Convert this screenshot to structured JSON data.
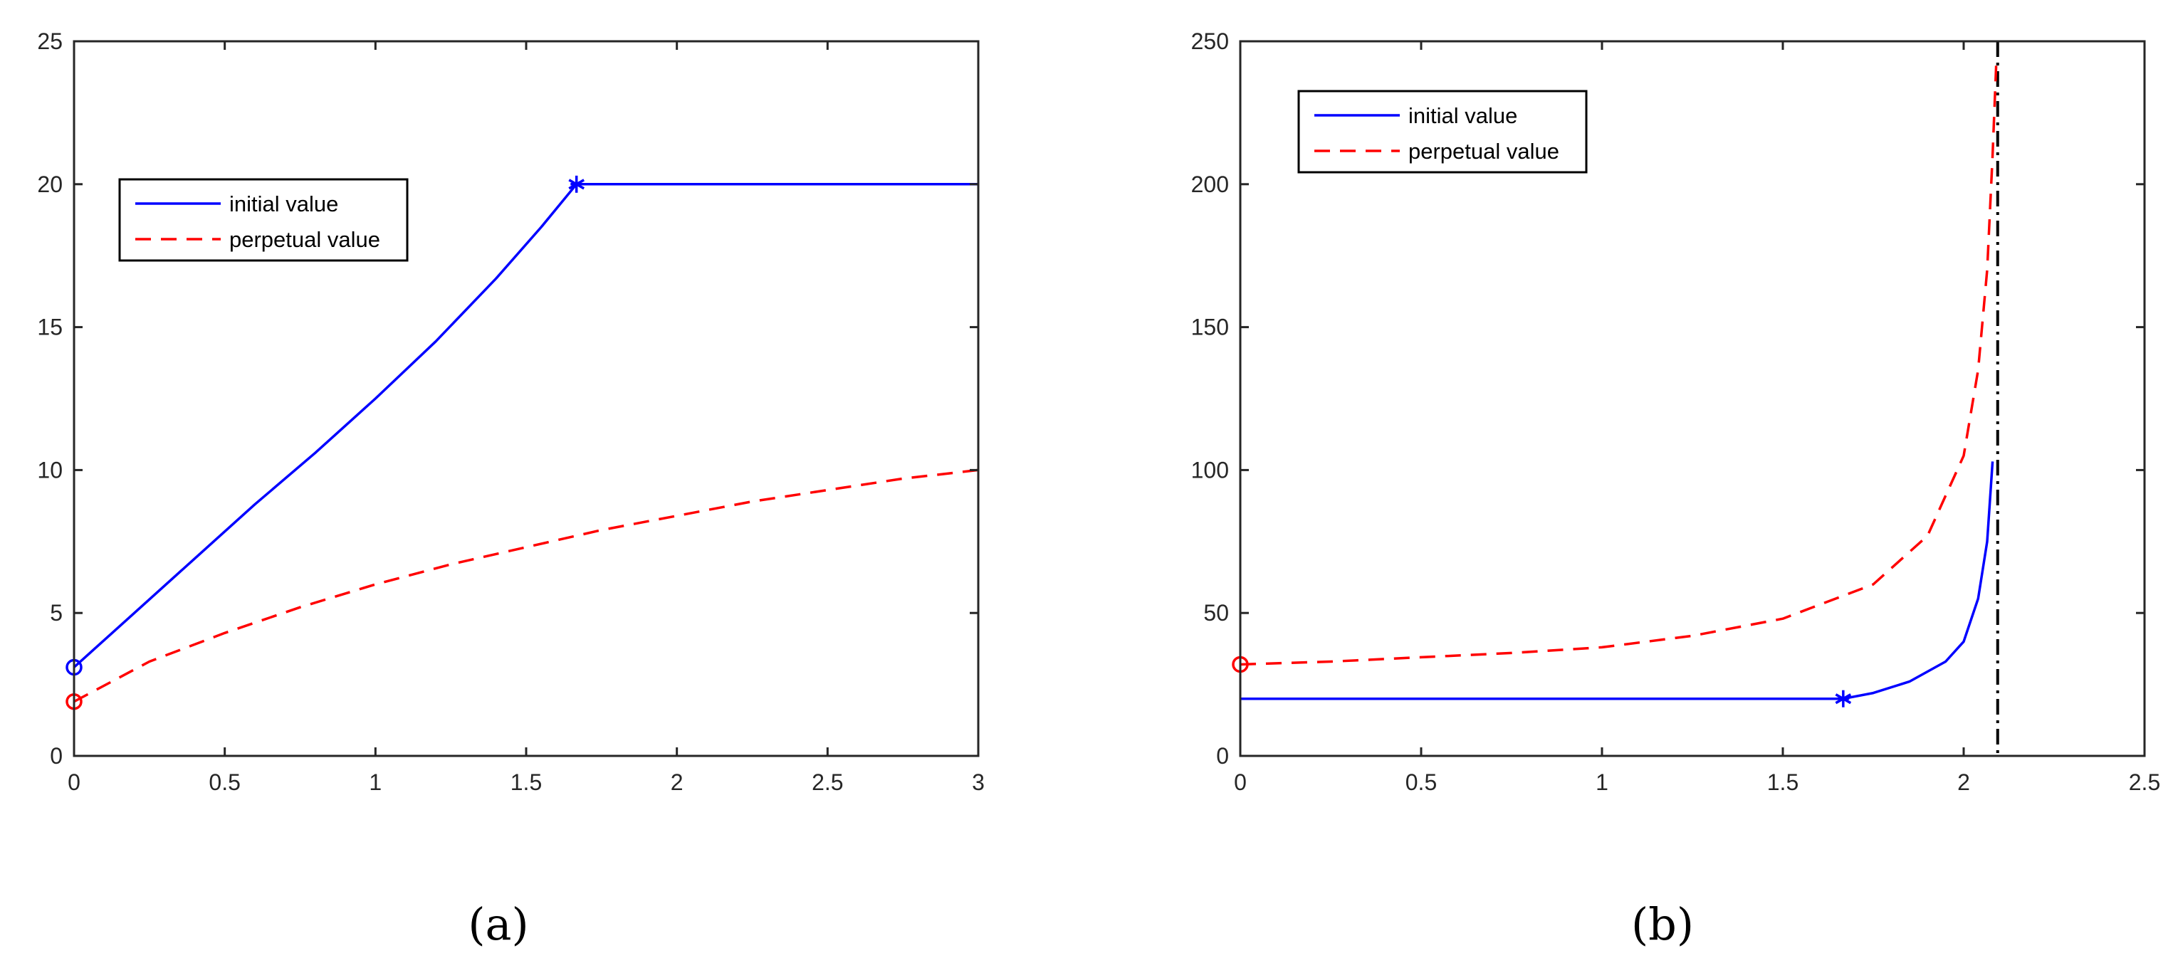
{
  "chart_data": [
    {
      "type": "line",
      "caption": "(a)",
      "xlim": [
        0,
        3
      ],
      "ylim": [
        0,
        25
      ],
      "xticks": [
        "0",
        "0.5",
        "1",
        "1.5",
        "2",
        "2.5",
        "3"
      ],
      "yticks": [
        "0",
        "5",
        "10",
        "15",
        "20",
        "25"
      ],
      "grid": false,
      "legend_placement": "upper-left",
      "legend": [
        "initial value",
        "perpetual value"
      ],
      "series": [
        {
          "name": "initial value",
          "style": "solid",
          "color": "#0000ff",
          "x": [
            0,
            0.2,
            0.4,
            0.6,
            0.8,
            1.0,
            1.2,
            1.4,
            1.55,
            1.667,
            2.0,
            2.5,
            3.0
          ],
          "y": [
            3.1,
            5.0,
            6.9,
            8.8,
            10.6,
            12.5,
            14.5,
            16.7,
            18.5,
            20,
            20,
            20,
            20
          ]
        },
        {
          "name": "perpetual value",
          "style": "dashed",
          "color": "#ff0000",
          "x": [
            0,
            0.25,
            0.5,
            0.75,
            1.0,
            1.25,
            1.5,
            1.75,
            2.0,
            2.25,
            2.5,
            2.75,
            3.0
          ],
          "y": [
            1.9,
            3.3,
            4.3,
            5.2,
            6.0,
            6.7,
            7.3,
            7.9,
            8.4,
            8.9,
            9.3,
            9.7,
            10.0
          ]
        }
      ],
      "markers": [
        {
          "shape": "circle",
          "x": 0,
          "y": 3.1,
          "color": "#0000ff"
        },
        {
          "shape": "circle",
          "x": 0,
          "y": 1.9,
          "color": "#ff0000"
        },
        {
          "shape": "asterisk",
          "x": 1.667,
          "y": 20,
          "color": "#0000ff"
        }
      ]
    },
    {
      "type": "line",
      "caption": "(b)",
      "xlim": [
        0,
        2.5
      ],
      "ylim": [
        0,
        250
      ],
      "xticks": [
        "0",
        "0.5",
        "1",
        "1.5",
        "2",
        "2.5"
      ],
      "yticks": [
        "0",
        "50",
        "100",
        "150",
        "200",
        "250"
      ],
      "grid": false,
      "legend_placement": "upper-left",
      "legend": [
        "initial value",
        "perpetual value"
      ],
      "series": [
        {
          "name": "initial value",
          "style": "solid",
          "color": "#0000ff",
          "x": [
            0,
            0.5,
            1.0,
            1.5,
            1.667,
            1.75,
            1.85,
            1.95,
            2.0,
            2.04,
            2.065,
            2.08
          ],
          "y": [
            20,
            20,
            20,
            20,
            20,
            22,
            26,
            33,
            40,
            55,
            75,
            103
          ]
        },
        {
          "name": "perpetual value",
          "style": "dashed",
          "color": "#ff0000",
          "x": [
            0,
            0.25,
            0.5,
            0.75,
            1.0,
            1.25,
            1.5,
            1.75,
            1.9,
            2.0,
            2.04,
            2.065,
            2.08,
            2.09
          ],
          "y": [
            32,
            33,
            34.5,
            36,
            38,
            42,
            48,
            60,
            77,
            105,
            135,
            170,
            210,
            242
          ]
        }
      ],
      "reference_lines": [
        {
          "orientation": "vertical",
          "x": 2.094,
          "style": "dash-dot",
          "color": "#000000"
        }
      ],
      "markers": [
        {
          "shape": "circle",
          "x": 0,
          "y": 32,
          "color": "#ff0000"
        },
        {
          "shape": "asterisk",
          "x": 1.667,
          "y": 20,
          "color": "#0000ff"
        }
      ]
    }
  ]
}
